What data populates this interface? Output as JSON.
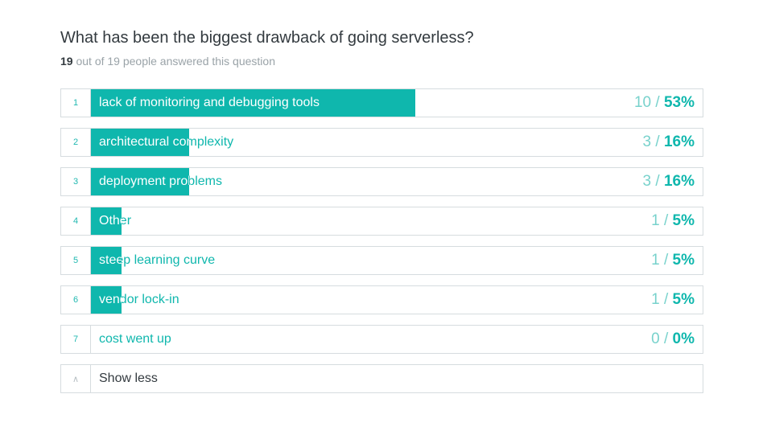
{
  "header": {
    "title": "What has been the biggest drawback of going serverless?",
    "answered": "19",
    "answered_rest": "out of 19 people answered this question"
  },
  "chart_data": {
    "type": "bar",
    "orientation": "horizontal",
    "total": 19,
    "bars": [
      {
        "index": "1",
        "label": "lack of monitoring and debugging tools",
        "count": 10,
        "percent": 53,
        "count_text": "10",
        "percent_text": "53%"
      },
      {
        "index": "2",
        "label": "architectural complexity",
        "count": 3,
        "percent": 16,
        "count_text": "3",
        "percent_text": "16%"
      },
      {
        "index": "3",
        "label": "deployment problems",
        "count": 3,
        "percent": 16,
        "count_text": "3",
        "percent_text": "16%"
      },
      {
        "index": "4",
        "label": "Other",
        "count": 1,
        "percent": 5,
        "count_text": "1",
        "percent_text": "5%"
      },
      {
        "index": "5",
        "label": "steep learning curve",
        "count": 1,
        "percent": 5,
        "count_text": "1",
        "percent_text": "5%"
      },
      {
        "index": "6",
        "label": "vendor lock-in",
        "count": 1,
        "percent": 5,
        "count_text": "1",
        "percent_text": "5%"
      },
      {
        "index": "7",
        "label": "cost went up",
        "count": 0,
        "percent": 0,
        "count_text": "0",
        "percent_text": "0%"
      }
    ],
    "colors": {
      "bar": "#0fb7ad",
      "count_text": "#78d2cc"
    }
  },
  "footer": {
    "toggle_icon": "chevron-up-icon",
    "toggle_glyph": "∧",
    "toggle_label": "Show less"
  }
}
